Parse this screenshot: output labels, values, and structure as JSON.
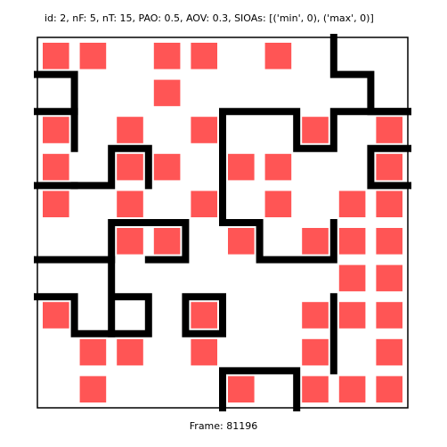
{
  "header_text": "id: 2, nF: 5, nT: 15, PAO: 0.5, AOV: 0.3, SIOAs: [('min', 0), ('max', 0)]",
  "footer_text": "Frame: 81196",
  "colors": {
    "tile": "#ff5555",
    "wall": "#000000",
    "background": "#ffffff"
  },
  "grid": {
    "cols": 10,
    "rows": 10,
    "tiles": [
      [
        0,
        0
      ],
      [
        1,
        0
      ],
      [
        3,
        0
      ],
      [
        4,
        0
      ],
      [
        6,
        0
      ],
      [
        3,
        1
      ],
      [
        0,
        2
      ],
      [
        2,
        2
      ],
      [
        4,
        2
      ],
      [
        7,
        2
      ],
      [
        9,
        2
      ],
      [
        0,
        3
      ],
      [
        2,
        3
      ],
      [
        3,
        3
      ],
      [
        5,
        3
      ],
      [
        6,
        3
      ],
      [
        9,
        3
      ],
      [
        0,
        4
      ],
      [
        2,
        4
      ],
      [
        4,
        4
      ],
      [
        6,
        4
      ],
      [
        8,
        4
      ],
      [
        9,
        4
      ],
      [
        2,
        5
      ],
      [
        3,
        5
      ],
      [
        5,
        5
      ],
      [
        7,
        5
      ],
      [
        8,
        5
      ],
      [
        9,
        5
      ],
      [
        8,
        6
      ],
      [
        9,
        6
      ],
      [
        0,
        7
      ],
      [
        4,
        7
      ],
      [
        7,
        7
      ],
      [
        8,
        7
      ],
      [
        9,
        7
      ],
      [
        1,
        8
      ],
      [
        2,
        8
      ],
      [
        4,
        8
      ],
      [
        7,
        8
      ],
      [
        9,
        8
      ],
      [
        1,
        9
      ],
      [
        5,
        9
      ],
      [
        7,
        9
      ],
      [
        8,
        9
      ],
      [
        9,
        9
      ]
    ],
    "walls": [
      [
        [
          8,
          0
        ],
        [
          8,
          1
        ],
        [
          9,
          1
        ],
        [
          9,
          2
        ],
        [
          10,
          2
        ]
      ],
      [
        [
          0,
          1
        ],
        [
          1,
          1
        ],
        [
          1,
          2
        ]
      ],
      [
        [
          5,
          3
        ],
        [
          5,
          2
        ],
        [
          7,
          2
        ],
        [
          7,
          3
        ],
        [
          8,
          3
        ],
        [
          8,
          2
        ],
        [
          10,
          2
        ]
      ],
      [
        [
          0,
          2
        ],
        [
          1,
          2
        ],
        [
          1,
          3
        ]
      ],
      [
        [
          1,
          4
        ],
        [
          2,
          4
        ],
        [
          2,
          3
        ],
        [
          3,
          3
        ],
        [
          3,
          4
        ]
      ],
      [
        [
          0,
          4
        ],
        [
          1,
          4
        ]
      ],
      [
        [
          10,
          3
        ],
        [
          9,
          3
        ],
        [
          9,
          4
        ],
        [
          10,
          4
        ]
      ],
      [
        [
          5,
          3
        ],
        [
          5,
          5
        ],
        [
          6,
          5
        ],
        [
          6,
          6
        ],
        [
          8,
          6
        ],
        [
          8,
          5
        ]
      ],
      [
        [
          2,
          6
        ],
        [
          2,
          5
        ],
        [
          4,
          5
        ],
        [
          4,
          6
        ],
        [
          3,
          6
        ]
      ],
      [
        [
          0,
          6
        ],
        [
          2,
          6
        ],
        [
          2,
          7
        ],
        [
          3,
          7
        ],
        [
          3,
          8
        ],
        [
          2,
          8
        ],
        [
          2,
          7
        ]
      ],
      [
        [
          0,
          7
        ],
        [
          1,
          7
        ],
        [
          1,
          8
        ],
        [
          2,
          8
        ]
      ],
      [
        [
          4,
          8
        ],
        [
          4,
          7
        ],
        [
          5,
          7
        ],
        [
          5,
          8
        ],
        [
          4,
          8
        ]
      ],
      [
        [
          8,
          7
        ],
        [
          8,
          9
        ]
      ],
      [
        [
          5,
          10
        ],
        [
          5,
          9
        ],
        [
          7,
          9
        ],
        [
          7,
          10
        ]
      ]
    ]
  }
}
